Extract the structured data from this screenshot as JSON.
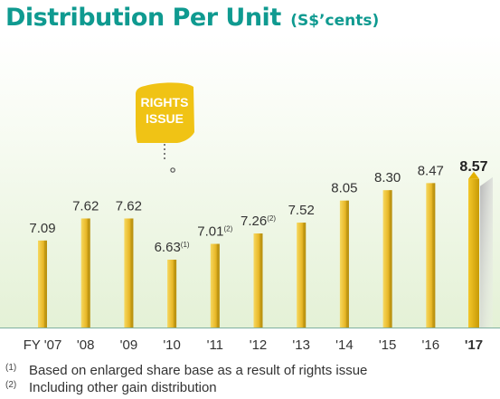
{
  "header": {
    "title": "Distribution Per Unit",
    "unit": "(S$’cents)"
  },
  "callout": {
    "label_line1": "RIGHTS",
    "label_line2": "ISSUE"
  },
  "colors": {
    "title": "#0f9a90",
    "bar_gold": "#e9b92a",
    "bar_dark": "#b8900f",
    "callout_fill": "#f0c315",
    "axis_line": "#7fb0a0"
  },
  "chart_data": {
    "type": "bar",
    "categories": [
      "FY '07",
      "'08",
      "'09",
      "'10",
      "'11",
      "'12",
      "'13",
      "'14",
      "'15",
      "'16",
      "'17"
    ],
    "values": [
      7.09,
      7.62,
      7.62,
      6.63,
      7.01,
      7.26,
      7.52,
      8.05,
      8.3,
      8.47,
      8.57
    ],
    "value_labels": [
      "7.09",
      "7.62",
      "7.62",
      "6.63",
      "7.01",
      "7.26",
      "7.52",
      "8.05",
      "8.30",
      "8.47",
      "8.57"
    ],
    "label_notes": [
      "",
      "",
      "",
      "(1)",
      "(2)",
      "(2)",
      "",
      "",
      "",
      "",
      ""
    ],
    "highlighted_index": 10,
    "annotation": {
      "category": "'10",
      "text": "RIGHTS ISSUE"
    }
  },
  "footnotes": [
    {
      "marker": "(1)",
      "text": "Based on enlarged share base as a result of rights issue"
    },
    {
      "marker": "(2)",
      "text": "Including other gain distribution"
    }
  ]
}
